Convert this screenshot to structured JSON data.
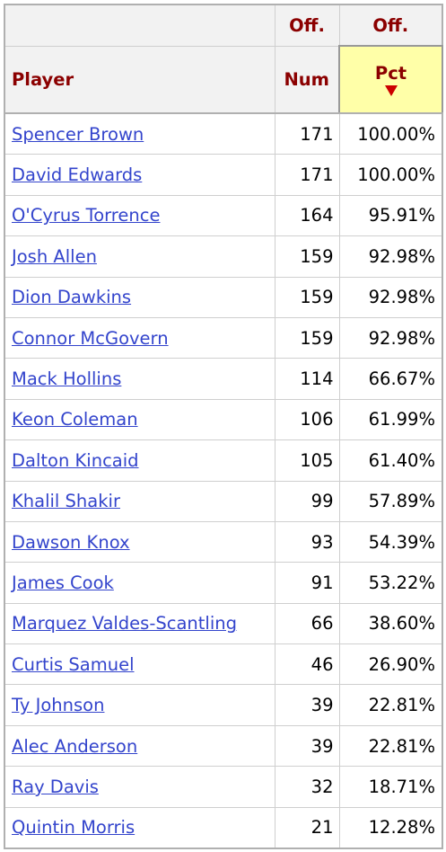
{
  "table": {
    "header": {
      "top": [
        "Off.",
        "Off."
      ],
      "bottom": [
        "Player",
        "Num",
        "Pct"
      ]
    },
    "rows": [
      [
        "Spencer Brown",
        171,
        "100.00%"
      ],
      [
        "David Edwards",
        171,
        "100.00%"
      ],
      [
        "O'Cyrus Torrence",
        164,
        "95.91%"
      ],
      [
        "Josh Allen",
        159,
        "92.98%"
      ],
      [
        "Dion Dawkins",
        159,
        "92.98%"
      ],
      [
        "Connor McGovern",
        159,
        "92.98%"
      ],
      [
        "Mack Hollins",
        114,
        "66.67%"
      ],
      [
        "Keon Coleman",
        106,
        "61.99%"
      ],
      [
        "Dalton Kincaid",
        105,
        "61.40%"
      ],
      [
        "Khalil Shakir",
        99,
        "57.89%"
      ],
      [
        "Dawson Knox",
        93,
        "54.39%"
      ],
      [
        "James Cook",
        91,
        "53.22%"
      ],
      [
        "Marquez Valdes-Scantling",
        66,
        "38.60%"
      ],
      [
        "Curtis Samuel",
        46,
        "26.90%"
      ],
      [
        "Ty Johnson",
        39,
        "22.81%"
      ],
      [
        "Alec Anderson",
        39,
        "22.81%"
      ],
      [
        "Ray Davis",
        32,
        "18.71%"
      ],
      [
        "Quintin Morris",
        21,
        "12.28%"
      ]
    ]
  }
}
